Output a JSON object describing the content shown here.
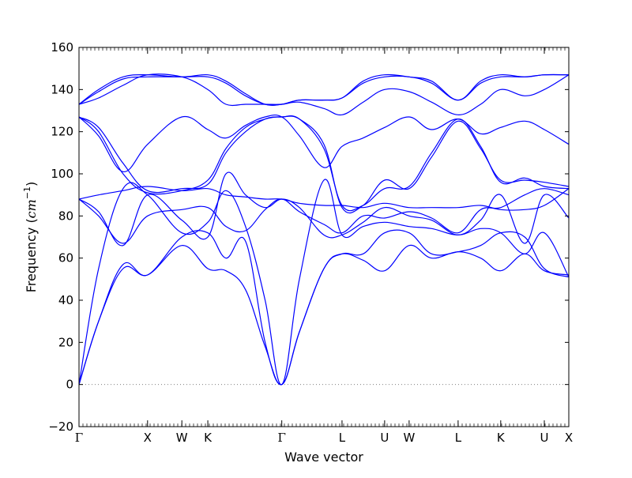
{
  "chart_data": {
    "type": "line",
    "xlabel": "Wave vector",
    "ylabel": "Frequency (cm⁻¹)",
    "ylabel_main": "Frequency (",
    "ylabel_unit": "cm",
    "ylabel_exp": "−1",
    "ylabel_close": ")",
    "ylim": [
      -20,
      160
    ],
    "yticks": [
      -20,
      0,
      20,
      40,
      60,
      80,
      100,
      120,
      140,
      160
    ],
    "grid": false,
    "legend": "none",
    "line_color": "#0000ff",
    "zero_line": {
      "y": 0,
      "style": "dotted",
      "color": "#808080"
    },
    "xlim": [
      0,
      1
    ],
    "high_symmetry_points": [
      {
        "label": "Γ",
        "x": 0.0
      },
      {
        "label": "X",
        "x": 0.14
      },
      {
        "label": "W",
        "x": 0.21
      },
      {
        "label": "K",
        "x": 0.263
      },
      {
        "label": "Γ",
        "x": 0.414
      },
      {
        "label": "L",
        "x": 0.537
      },
      {
        "label": "U",
        "x": 0.624
      },
      {
        "label": "W",
        "x": 0.674
      },
      {
        "label": "L",
        "x": 0.774
      },
      {
        "label": "K",
        "x": 0.861
      },
      {
        "label": "U",
        "x": 0.95
      },
      {
        "label": "X",
        "x": 1.0
      }
    ],
    "series": [
      {
        "x": [
          0,
          0.04,
          0.09,
          0.14,
          0.21,
          0.263,
          0.3,
          0.34,
          0.38,
          0.414,
          0.45,
          0.5,
          0.537,
          0.58,
          0.624,
          0.674,
          0.72,
          0.774,
          0.82,
          0.861,
          0.91,
          0.95,
          1.0
        ],
        "y": [
          0,
          30,
          55,
          52,
          66,
          55,
          54,
          45,
          18,
          0,
          25,
          55,
          62,
          59,
          54,
          66,
          60,
          63,
          60,
          54,
          62,
          54,
          52
        ]
      },
      {
        "x": [
          0,
          0.04,
          0.09,
          0.14,
          0.21,
          0.263,
          0.3,
          0.34,
          0.38,
          0.414,
          0.45,
          0.5,
          0.537,
          0.58,
          0.624,
          0.674,
          0.72,
          0.774,
          0.82,
          0.861,
          0.91,
          0.95,
          1.0
        ],
        "y": [
          0,
          30,
          57,
          52,
          70,
          72,
          60,
          68,
          20,
          0,
          25,
          55,
          62,
          62,
          72,
          72,
          62,
          63,
          66,
          72,
          70,
          55,
          51
        ]
      },
      {
        "x": [
          0,
          0.04,
          0.09,
          0.14,
          0.21,
          0.263,
          0.3,
          0.34,
          0.38,
          0.414,
          0.45,
          0.5,
          0.537,
          0.58,
          0.624,
          0.674,
          0.72,
          0.774,
          0.82,
          0.861,
          0.91,
          0.95,
          1.0
        ],
        "y": [
          0,
          55,
          93,
          90,
          72,
          77,
          92,
          75,
          40,
          0,
          50,
          97,
          71,
          75,
          77,
          75,
          74,
          71,
          74,
          72,
          62,
          72,
          51
        ]
      },
      {
        "x": [
          0,
          0.04,
          0.09,
          0.14,
          0.21,
          0.263,
          0.3,
          0.34,
          0.38,
          0.414,
          0.45,
          0.5,
          0.537,
          0.58,
          0.624,
          0.674,
          0.72,
          0.774,
          0.82,
          0.861,
          0.91,
          0.95,
          1.0
        ],
        "y": [
          88,
          82,
          66,
          90,
          78,
          70,
          100,
          90,
          84,
          88,
          84,
          71,
          71,
          77,
          84,
          80,
          78,
          71,
          78,
          90,
          67,
          90,
          79
        ]
      },
      {
        "x": [
          0,
          0.04,
          0.09,
          0.14,
          0.21,
          0.263,
          0.3,
          0.34,
          0.38,
          0.414,
          0.45,
          0.5,
          0.537,
          0.58,
          0.624,
          0.674,
          0.72,
          0.774,
          0.82,
          0.861,
          0.91,
          0.95,
          1.0
        ],
        "y": [
          88,
          80,
          67,
          80,
          83,
          84,
          75,
          73,
          83,
          88,
          82,
          76,
          72,
          80,
          79,
          82,
          79,
          72,
          83,
          84,
          90,
          93,
          90
        ]
      },
      {
        "x": [
          0,
          0.04,
          0.09,
          0.14,
          0.21,
          0.263,
          0.3,
          0.34,
          0.38,
          0.414,
          0.45,
          0.5,
          0.537,
          0.58,
          0.624,
          0.674,
          0.72,
          0.774,
          0.82,
          0.861,
          0.91,
          0.95,
          1.0
        ],
        "y": [
          88,
          90,
          92,
          94,
          92,
          93,
          90,
          89,
          88,
          88,
          86,
          85,
          85,
          84,
          86,
          84,
          84,
          84,
          85,
          83,
          83,
          85,
          93
        ]
      },
      {
        "x": [
          0,
          0.04,
          0.09,
          0.14,
          0.21,
          0.263,
          0.3,
          0.34,
          0.38,
          0.414,
          0.45,
          0.5,
          0.537,
          0.58,
          0.624,
          0.674,
          0.72,
          0.774,
          0.82,
          0.861,
          0.91,
          0.95,
          1.0
        ],
        "y": [
          127,
          120,
          100,
          91,
          92,
          97,
          112,
          122,
          126,
          127,
          126,
          112,
          85,
          85,
          93,
          94,
          110,
          126,
          113,
          96,
          98,
          94,
          93
        ]
      },
      {
        "x": [
          0,
          0.04,
          0.09,
          0.14,
          0.21,
          0.263,
          0.3,
          0.34,
          0.38,
          0.414,
          0.45,
          0.5,
          0.537,
          0.58,
          0.624,
          0.674,
          0.72,
          0.774,
          0.82,
          0.861,
          0.91,
          0.95,
          1.0
        ],
        "y": [
          127,
          122,
          105,
          92,
          93,
          95,
          110,
          120,
          126,
          127,
          126,
          114,
          84,
          85,
          97,
          93,
          108,
          125,
          112,
          97,
          97,
          96,
          94
        ]
      },
      {
        "x": [
          0,
          0.04,
          0.09,
          0.14,
          0.21,
          0.263,
          0.3,
          0.34,
          0.38,
          0.414,
          0.45,
          0.5,
          0.537,
          0.58,
          0.624,
          0.674,
          0.72,
          0.774,
          0.82,
          0.861,
          0.91,
          0.95,
          1.0
        ],
        "y": [
          127,
          118,
          101,
          114,
          127,
          121,
          117,
          123,
          127,
          127,
          118,
          103,
          113,
          117,
          122,
          127,
          121,
          126,
          119,
          122,
          125,
          121,
          114
        ]
      },
      {
        "x": [
          0,
          0.04,
          0.09,
          0.14,
          0.21,
          0.263,
          0.3,
          0.34,
          0.38,
          0.414,
          0.45,
          0.5,
          0.537,
          0.58,
          0.624,
          0.674,
          0.72,
          0.774,
          0.82,
          0.861,
          0.91,
          0.95,
          1.0
        ],
        "y": [
          133,
          136,
          142,
          147,
          146,
          140,
          133,
          133,
          133,
          133,
          134,
          131,
          128,
          134,
          140,
          139,
          134,
          128,
          133,
          140,
          137,
          140,
          147
        ]
      },
      {
        "x": [
          0,
          0.04,
          0.09,
          0.14,
          0.21,
          0.263,
          0.3,
          0.34,
          0.38,
          0.414,
          0.45,
          0.5,
          0.537,
          0.58,
          0.624,
          0.674,
          0.72,
          0.774,
          0.82,
          0.861,
          0.91,
          0.95,
          1.0
        ],
        "y": [
          133,
          139,
          145,
          146,
          146,
          146,
          143,
          137,
          133,
          133,
          135,
          135,
          136,
          143,
          146,
          146,
          143,
          135,
          143,
          146,
          146,
          147,
          147
        ]
      },
      {
        "x": [
          0,
          0.04,
          0.09,
          0.14,
          0.21,
          0.263,
          0.3,
          0.34,
          0.38,
          0.414,
          0.45,
          0.5,
          0.537,
          0.58,
          0.624,
          0.674,
          0.72,
          0.774,
          0.82,
          0.861,
          0.91,
          0.95,
          1.0
        ],
        "y": [
          133,
          140,
          146,
          147,
          146,
          147,
          144,
          138,
          133,
          133,
          135,
          135,
          136,
          144,
          147,
          146,
          144,
          135,
          144,
          147,
          146,
          147,
          147
        ]
      }
    ]
  }
}
